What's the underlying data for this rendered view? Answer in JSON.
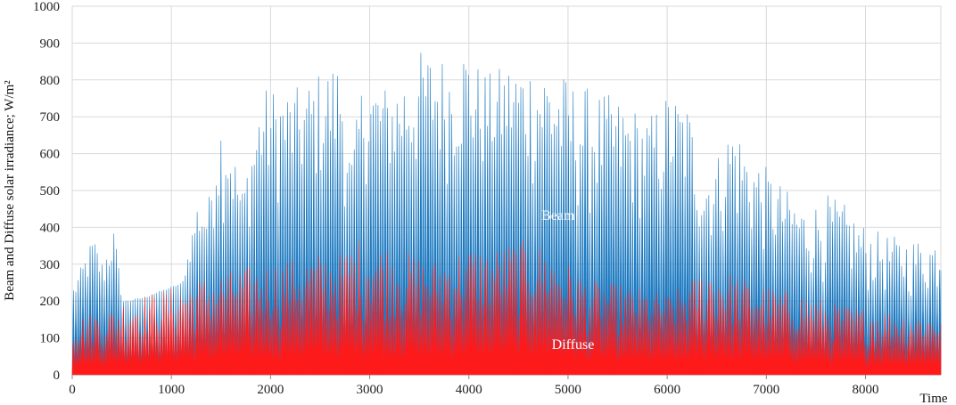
{
  "chart_data": {
    "type": "area",
    "title": "",
    "xlabel": "Time",
    "ylabel": "Beam and Diffuse solar irradiance; W/m²",
    "xlim": [
      0,
      8760
    ],
    "ylim": [
      0,
      1000
    ],
    "xticks": [
      "0",
      "1000",
      "2000",
      "3000",
      "4000",
      "5000",
      "6000",
      "7000",
      "8000"
    ],
    "yticks": [
      "0",
      "100",
      "200",
      "300",
      "400",
      "500",
      "600",
      "700",
      "800",
      "900",
      "1000"
    ],
    "grid": true,
    "series": [
      {
        "name": "Beam",
        "color": "#1f7bc1",
        "envelope_x": [
          0,
          100,
          200,
          300,
          400,
          500,
          700,
          900,
          1100,
          1250,
          1350,
          1450,
          1550,
          1700,
          1900,
          2100,
          2300,
          2500,
          2700,
          2800,
          2900,
          3000,
          3200,
          3400,
          3500,
          3600,
          3800,
          3950,
          4050,
          4200,
          4400,
          4600,
          4800,
          5000,
          5200,
          5400,
          5600,
          5800,
          6000,
          6200,
          6350,
          6500,
          6650,
          6800,
          7000,
          7200,
          7400,
          7600,
          7800,
          8000,
          8200,
          8400,
          8600,
          8760
        ],
        "envelope_peak": [
          240,
          310,
          380,
          300,
          420,
          200,
          210,
          230,
          250,
          470,
          440,
          700,
          700,
          500,
          780,
          780,
          780,
          830,
          860,
          580,
          780,
          800,
          780,
          850,
          880,
          880,
          860,
          900,
          850,
          820,
          850,
          850,
          860,
          800,
          780,
          760,
          740,
          700,
          770,
          740,
          550,
          600,
          700,
          620,
          560,
          500,
          450,
          490,
          460,
          400,
          380,
          370,
          370,
          380
        ],
        "envelope_base": [
          160,
          160,
          170,
          170,
          170,
          190,
          200,
          220,
          240,
          260,
          270,
          230,
          240,
          260,
          250,
          260,
          270,
          280,
          300,
          200,
          350,
          350,
          330,
          250,
          280,
          300,
          300,
          330,
          300,
          330,
          330,
          280,
          200,
          200,
          180,
          180,
          200,
          220,
          230,
          230,
          200,
          200,
          180,
          160,
          150,
          150,
          130,
          110,
          100,
          100,
          100,
          100,
          100,
          110
        ]
      },
      {
        "name": "Diffuse",
        "color": "#ff1a1a",
        "envelope_x": [
          0,
          100,
          200,
          300,
          400,
          500,
          700,
          900,
          1100,
          1250,
          1350,
          1500,
          1700,
          1900,
          2100,
          2300,
          2500,
          2700,
          2850,
          3000,
          3200,
          3400,
          3600,
          3800,
          4000,
          4200,
          4400,
          4600,
          4800,
          5000,
          5200,
          5400,
          5600,
          5800,
          6000,
          6200,
          6400,
          6600,
          6800,
          7000,
          7200,
          7400,
          7600,
          7800,
          8000,
          8200,
          8400,
          8600,
          8760
        ],
        "envelope_peak": [
          150,
          160,
          170,
          175,
          180,
          200,
          215,
          230,
          245,
          260,
          270,
          280,
          290,
          300,
          310,
          320,
          330,
          330,
          370,
          360,
          350,
          330,
          310,
          330,
          350,
          340,
          360,
          370,
          340,
          300,
          260,
          250,
          240,
          230,
          220,
          250,
          300,
          280,
          260,
          240,
          230,
          220,
          200,
          190,
          180,
          175,
          170,
          165,
          160
        ],
        "envelope_base": [
          20,
          20,
          20,
          20,
          20,
          20,
          20,
          20,
          20,
          20,
          20,
          20,
          20,
          20,
          20,
          20,
          20,
          20,
          20,
          20,
          20,
          20,
          20,
          20,
          20,
          20,
          20,
          20,
          20,
          20,
          20,
          20,
          20,
          20,
          20,
          20,
          20,
          20,
          20,
          20,
          20,
          20,
          20,
          20,
          20,
          20,
          20,
          20,
          20
        ]
      }
    ],
    "annotations": [
      {
        "text": "Beam",
        "x": 4900,
        "y": 420
      },
      {
        "text": "Diffuse",
        "x": 5050,
        "y": 70
      }
    ]
  }
}
